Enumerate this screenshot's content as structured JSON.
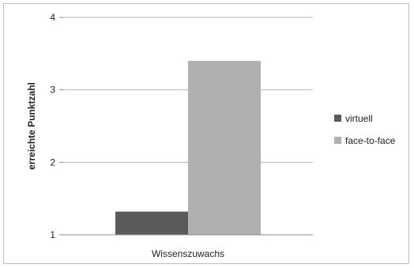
{
  "chart_data": {
    "type": "bar",
    "categories": [
      "Wissenszuwachs"
    ],
    "series": [
      {
        "name": "virtuell",
        "values": [
          1.32
        ],
        "color": "#5a5a5a"
      },
      {
        "name": "face-to-face",
        "values": [
          3.4
        ],
        "color": "#b0b0b0"
      }
    ],
    "ylabel": "erreichte Punktzahl",
    "xlabel": "",
    "ylim": [
      1,
      4
    ],
    "yticks": [
      "1",
      "2",
      "3",
      "4"
    ],
    "grid": true,
    "legend": "right"
  }
}
